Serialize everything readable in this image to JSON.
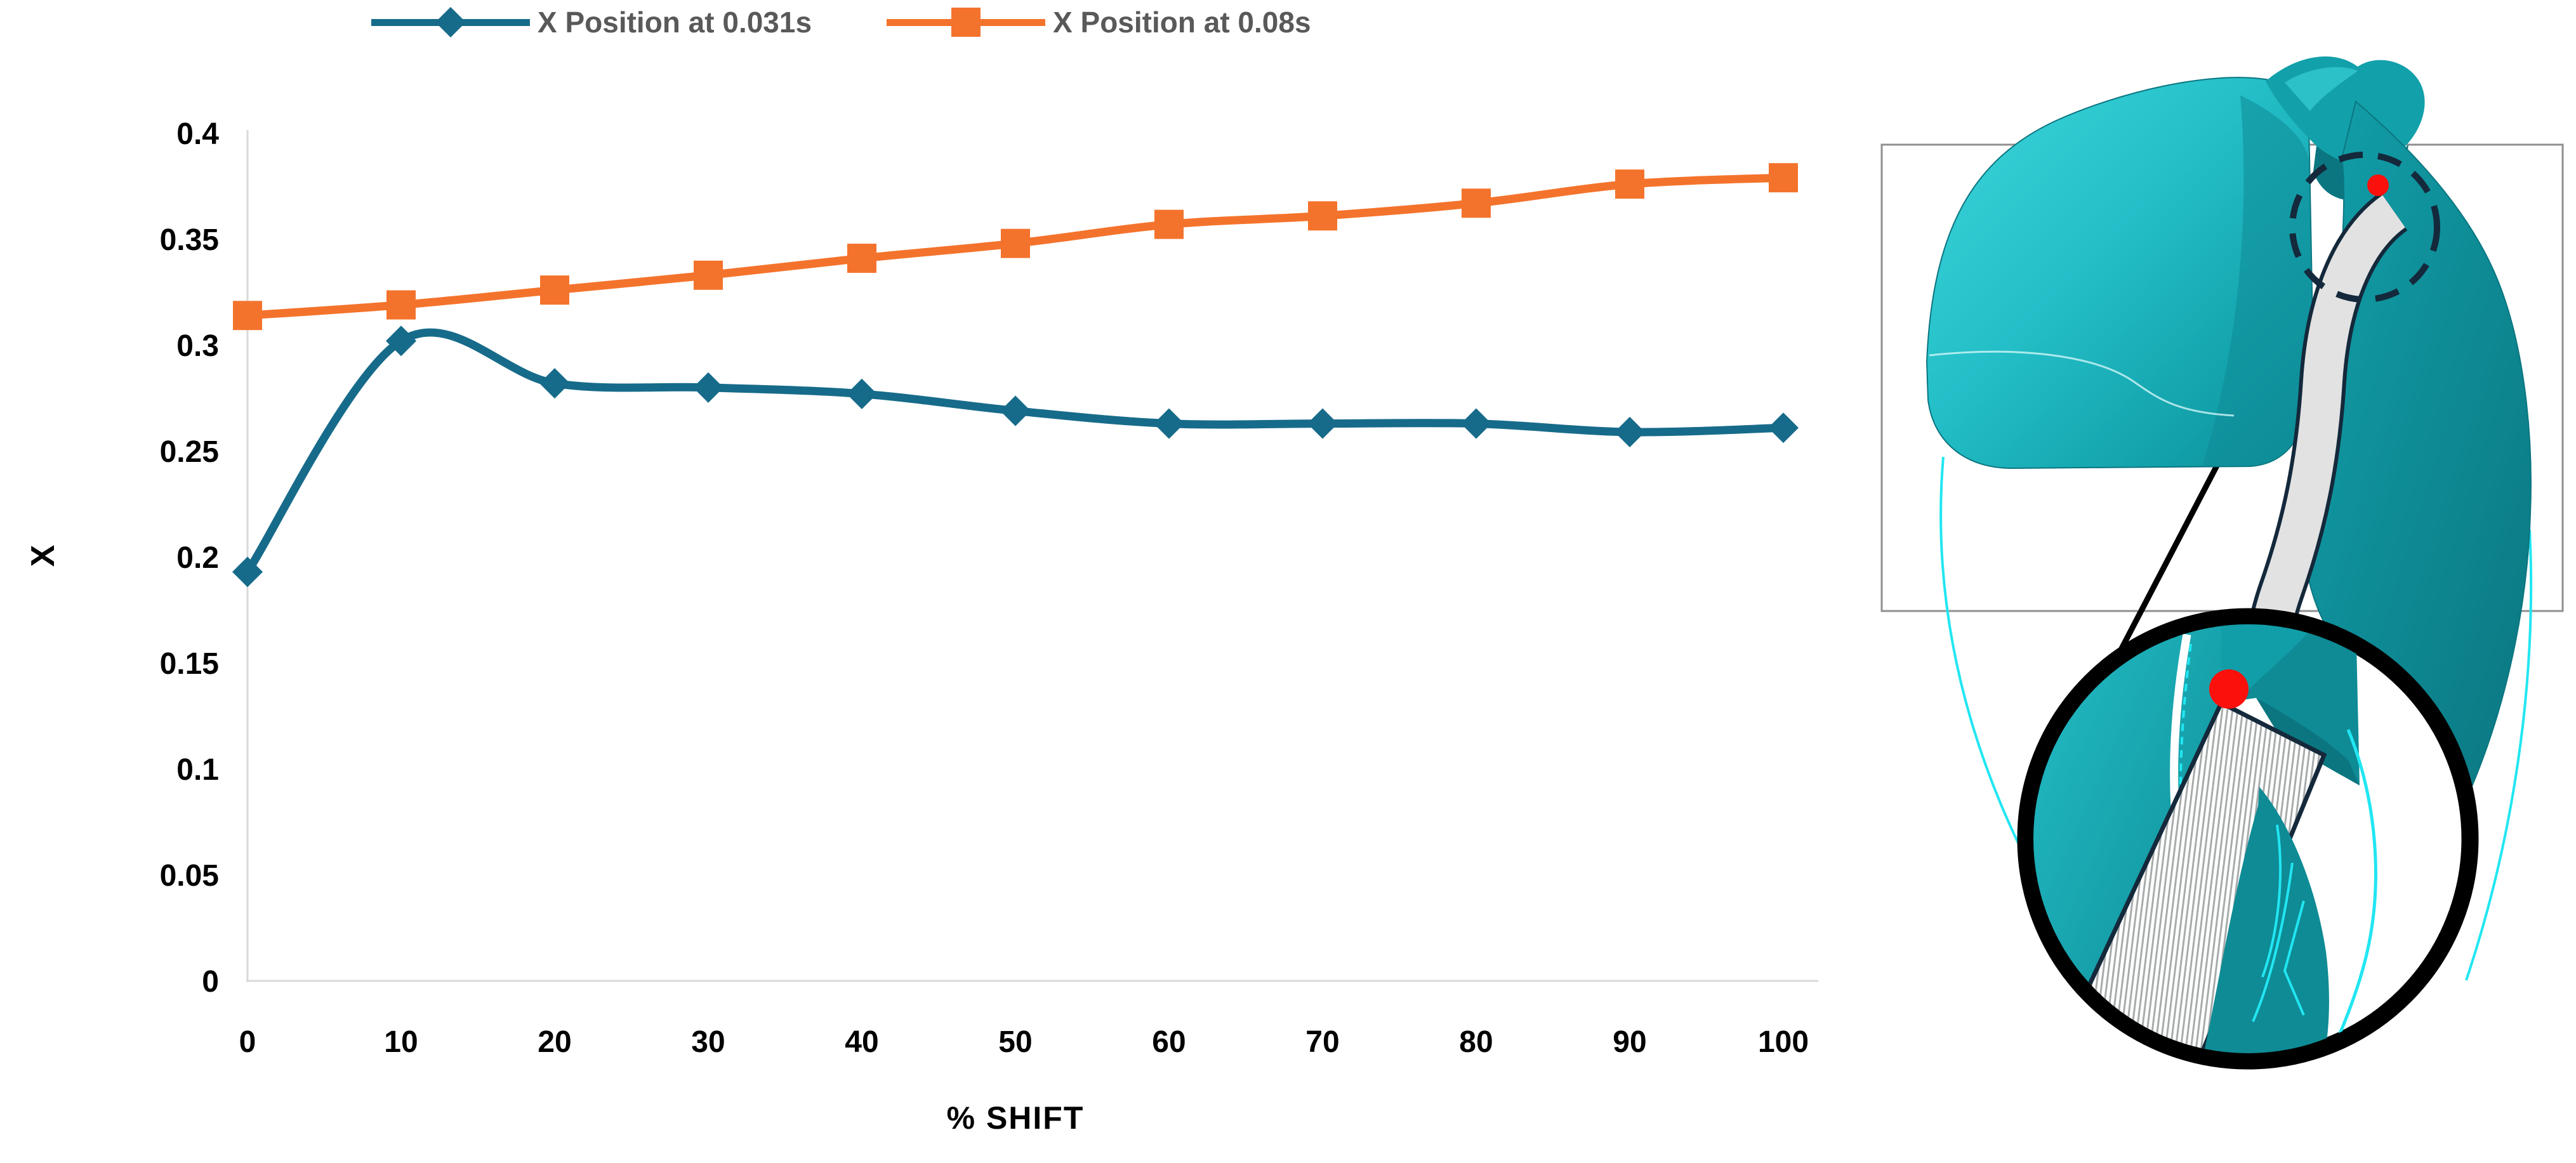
{
  "chart_data": {
    "type": "line",
    "title": "",
    "xlabel": "% SHIFT",
    "ylabel": "X",
    "categories": [
      0,
      10,
      20,
      30,
      40,
      50,
      60,
      70,
      80,
      90,
      100
    ],
    "x_tick_labels": [
      "0",
      "10",
      "20",
      "30",
      "40",
      "50",
      "60",
      "70",
      "80",
      "90",
      "100"
    ],
    "y_ticks": [
      "0",
      "0.05",
      "0.1",
      "0.15",
      "0.2",
      "0.25",
      "0.3",
      "0.35",
      "0.4"
    ],
    "ylim": [
      0,
      0.4
    ],
    "grid": false,
    "legend_position": "top",
    "legend_text_color": "#595959",
    "axis_line_color": "#D9D9D9",
    "tick_label_color": "#000000",
    "series": [
      {
        "name": "X Position at 0.031s",
        "color": "#176B8A",
        "marker": "diamond",
        "smooth": true,
        "values": [
          0.193,
          0.302,
          0.282,
          0.28,
          0.277,
          0.269,
          0.263,
          0.263,
          0.263,
          0.259,
          0.261
        ]
      },
      {
        "name": "X Position at 0.08s",
        "color": "#F4732C",
        "marker": "square",
        "smooth": true,
        "values": [
          0.314,
          0.319,
          0.326,
          0.333,
          0.341,
          0.348,
          0.357,
          0.361,
          0.367,
          0.376,
          0.379
        ]
      }
    ]
  },
  "illustration": {
    "markers": {
      "tracked_point": "red-dot-icon",
      "zoom_region": "dashed-circle-icon",
      "inset": "magnifier-circle-icon"
    },
    "colors": {
      "bright_cyan": "#3ED6DC",
      "cyan": "#23BEC7",
      "teal": "#12A0AA",
      "dark_teal": "#0E8B95",
      "deep_teal": "#0B7680",
      "outline_navy": "#14293B",
      "band_gray": "#E2E2E2",
      "hatch_gray": "#A7ABAB",
      "red": "#FB100C",
      "cyan_line": "#21E6F2",
      "frame_gray": "#8F8F8F",
      "connector_black": "#000000"
    }
  }
}
